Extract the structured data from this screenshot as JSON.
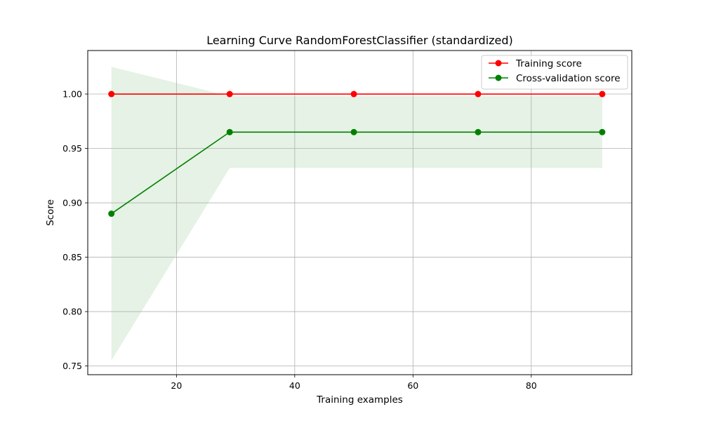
{
  "chart_data": {
    "type": "line",
    "title": "Learning Curve RandomForestClassifier (standardized)",
    "xlabel": "Training examples",
    "ylabel": "Score",
    "xlim": [
      5,
      97
    ],
    "ylim": [
      0.742,
      1.04
    ],
    "xticks": [
      20,
      40,
      60,
      80
    ],
    "yticks": [
      0.75,
      0.8,
      0.85,
      0.9,
      0.95,
      1.0
    ],
    "xtick_labels": [
      "20",
      "40",
      "60",
      "80"
    ],
    "ytick_labels": [
      "0.75",
      "0.80",
      "0.85",
      "0.90",
      "0.95",
      "1.00"
    ],
    "grid": true,
    "legend_position": "top-right",
    "x": [
      9,
      29,
      50,
      71,
      92
    ],
    "series": [
      {
        "name": "Training score",
        "color": "#ff0000",
        "marker": "circle",
        "values": [
          1.0,
          1.0,
          1.0,
          1.0,
          1.0
        ],
        "band_lower": [
          1.0,
          1.0,
          1.0,
          1.0,
          1.0
        ],
        "band_upper": [
          1.0,
          1.0,
          1.0,
          1.0,
          1.0
        ]
      },
      {
        "name": "Cross-validation score",
        "color": "#008000",
        "marker": "circle",
        "values": [
          0.89,
          0.965,
          0.965,
          0.965,
          0.965
        ],
        "band_lower": [
          0.755,
          0.932,
          0.932,
          0.932,
          0.932
        ],
        "band_upper": [
          1.025,
          0.998,
          0.998,
          0.998,
          0.998
        ]
      }
    ]
  }
}
